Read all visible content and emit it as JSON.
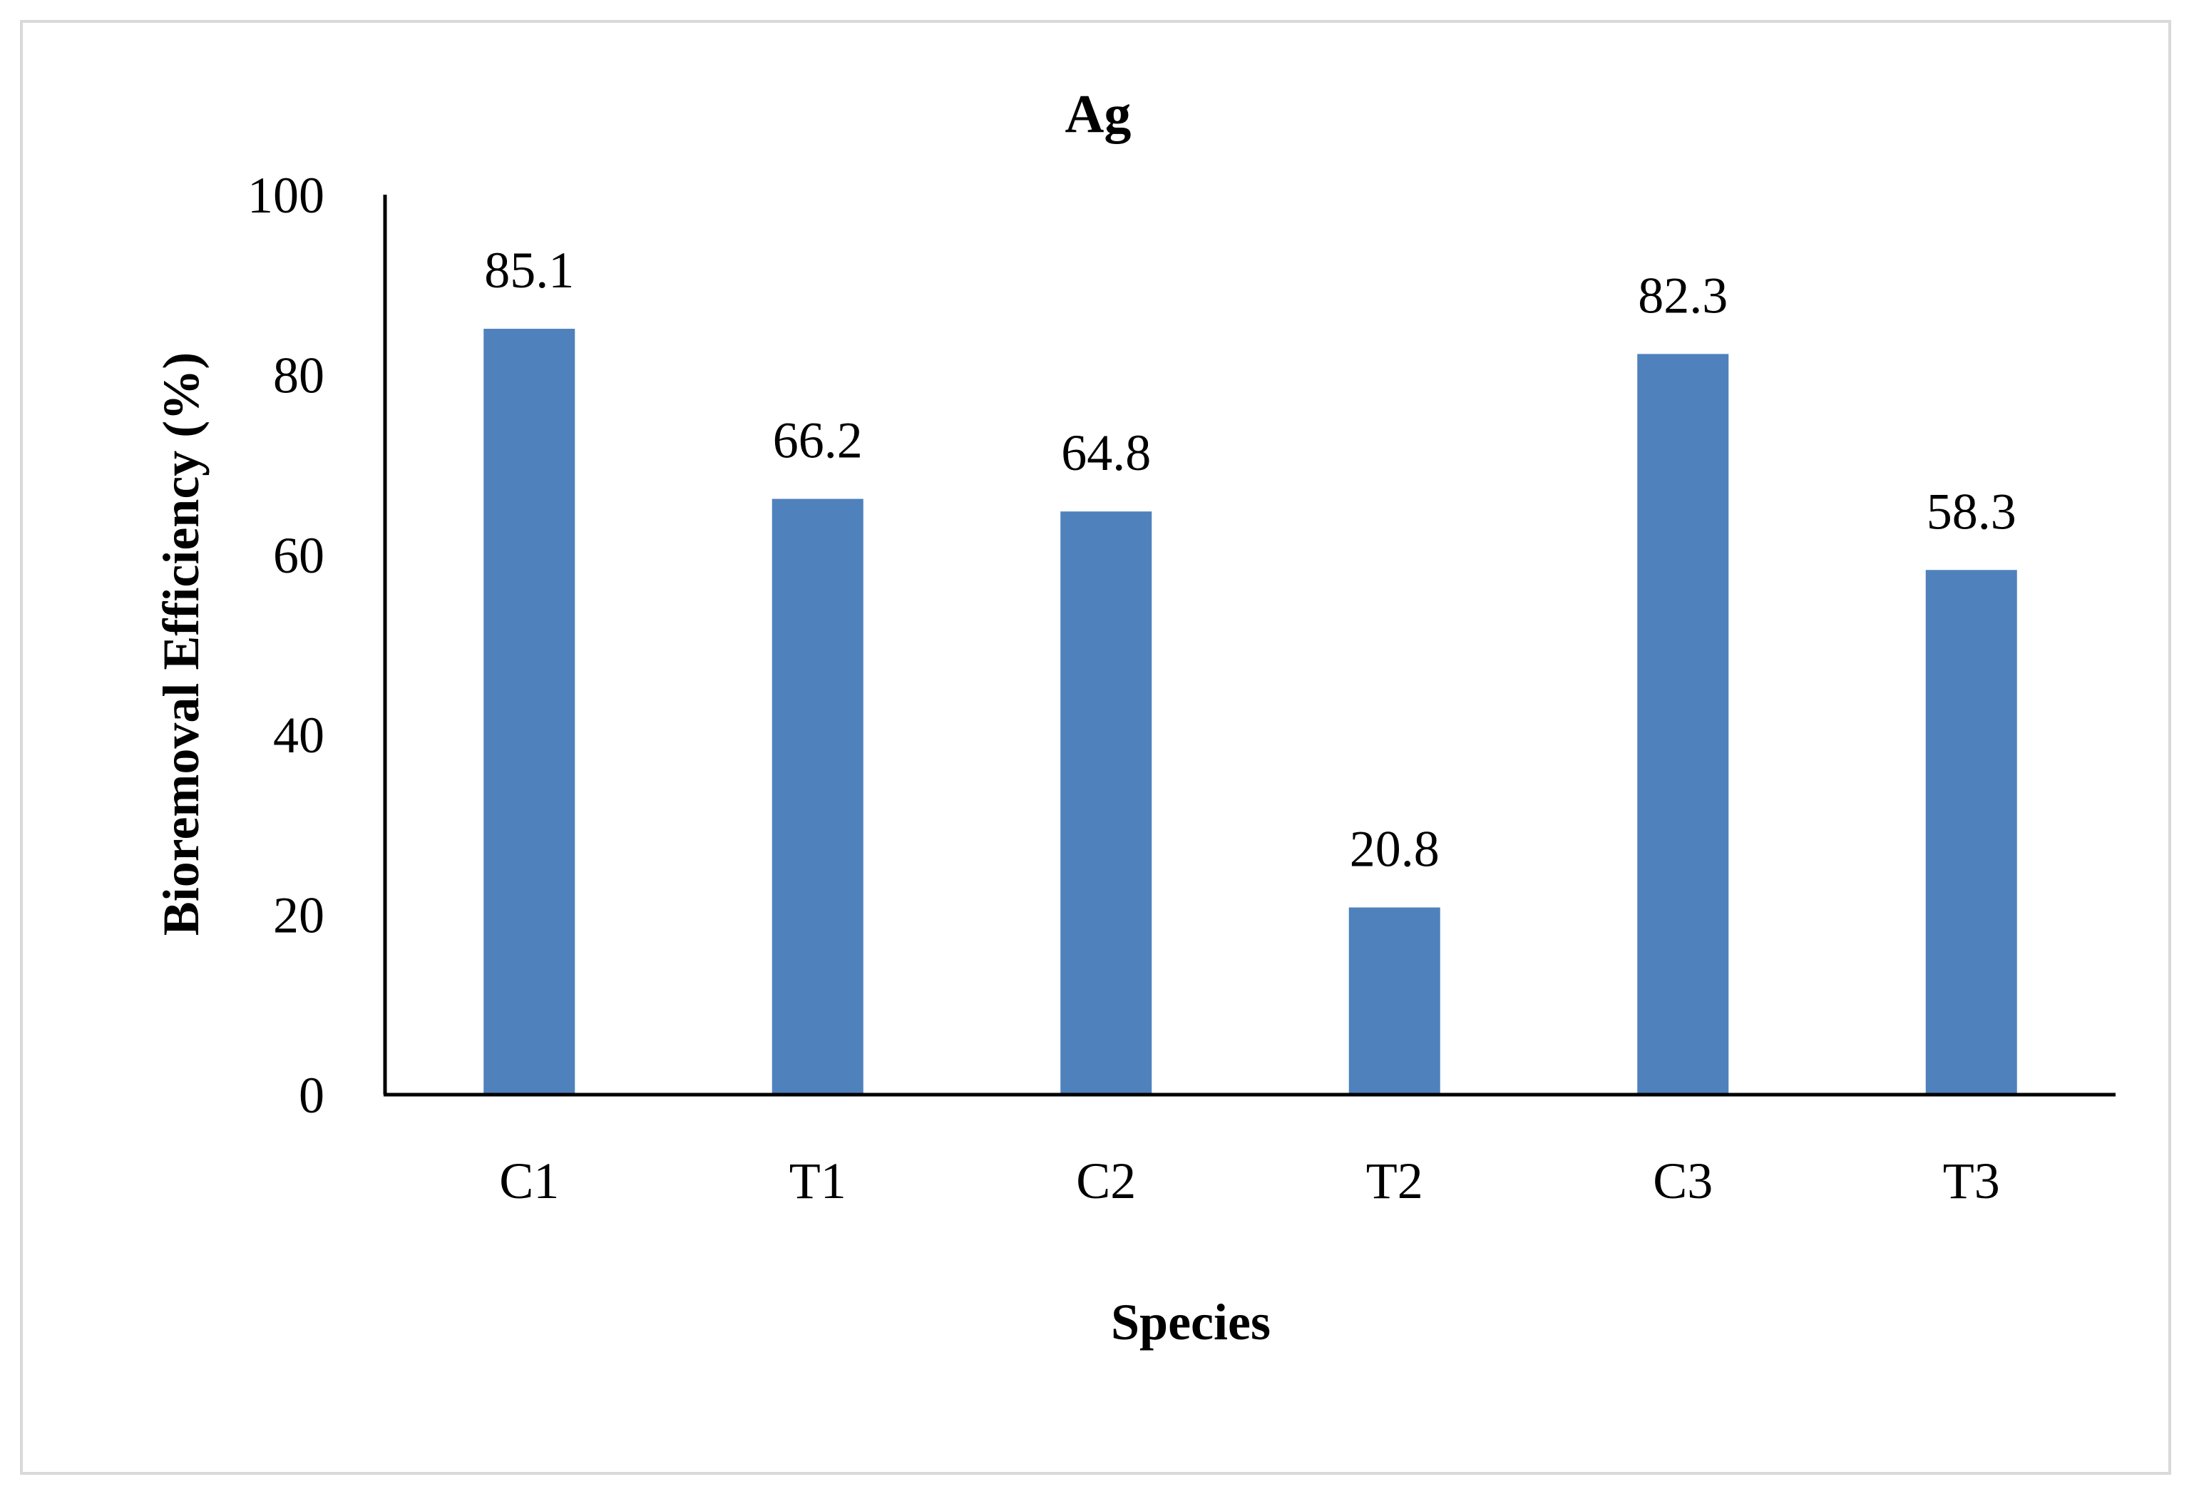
{
  "chart_data": {
    "type": "bar",
    "title": "Ag",
    "xlabel": "Species",
    "ylabel": "Bioremoval Efficiency (%)",
    "categories": [
      "C1",
      "T1",
      "C2",
      "T2",
      "C3",
      "T3"
    ],
    "values": [
      85.1,
      66.2,
      64.8,
      20.8,
      82.3,
      58.3
    ],
    "value_labels": [
      "85.1",
      "66.2",
      "64.8",
      "20.8",
      "82.3",
      "58.3"
    ],
    "ylim": [
      0,
      100
    ],
    "yticks": [
      "0",
      "20",
      "40",
      "60",
      "80",
      "100"
    ],
    "ytick_values": [
      0,
      20,
      40,
      60,
      80,
      100
    ],
    "bar_color": "#4f81bd",
    "grid": false,
    "legend": "none"
  }
}
